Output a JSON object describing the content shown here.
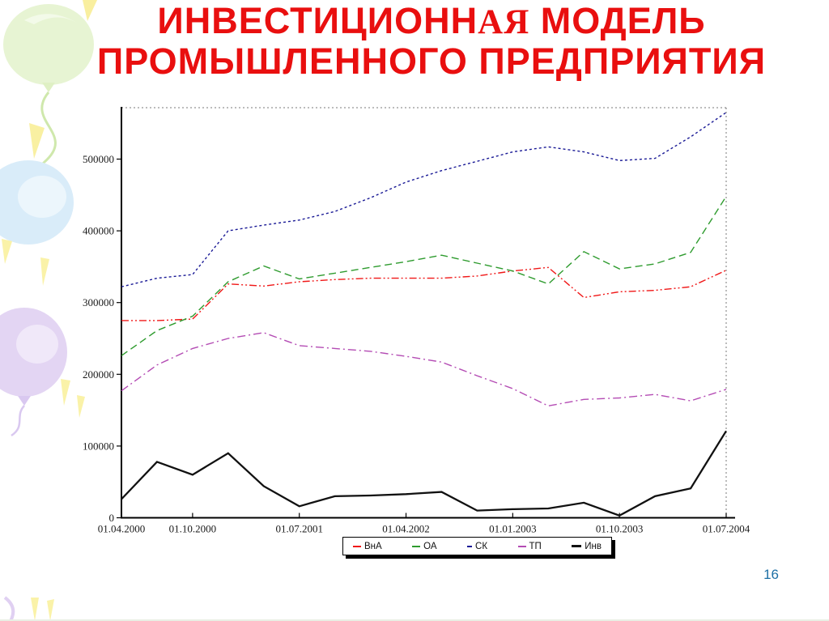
{
  "slide": {
    "title": {
      "line1_pre": "ИНВЕСТИЦИОНН",
      "line1_serif": "АЯ",
      "line1_post": " МОДЕЛЬ",
      "line2": "ПРОМЫШЛЕННОГО ПРЕДПРИЯТИЯ",
      "color": "#e90f0f"
    },
    "page_number": "16",
    "page_number_color": "#1d6fa5"
  },
  "chart_data": {
    "type": "line",
    "title": "",
    "xlabel": "",
    "ylabel": "",
    "grid": false,
    "legend_position": "bottom",
    "ylim": [
      0,
      570000
    ],
    "y_ticks": [
      0,
      100000,
      200000,
      300000,
      400000,
      500000
    ],
    "x_tick_labels": [
      "01.04.2000",
      "01.10.2000",
      "01.07.2001",
      "01.04.2002",
      "01.01.2003",
      "01.10.2003",
      "01.07.2004"
    ],
    "x_tick_months": [
      0,
      6,
      15,
      24,
      33,
      42,
      51
    ],
    "months_total": 51,
    "categories": [
      "01.04.2000",
      "01.07.2000",
      "01.10.2000",
      "01.01.2001",
      "01.04.2001",
      "01.07.2001",
      "01.10.2001",
      "01.01.2002",
      "01.04.2002",
      "01.07.2002",
      "01.10.2002",
      "01.01.2003",
      "01.04.2003",
      "01.07.2003",
      "01.10.2003",
      "01.01.2004",
      "01.04.2004",
      "01.07.2004"
    ],
    "series": [
      {
        "name": "ВнА",
        "key": "vna",
        "color": "#f01818",
        "dash": "9 3 2 3 2 3",
        "width": 1.4,
        "values": [
          275000,
          275000,
          277000,
          326000,
          323000,
          329000,
          332000,
          334000,
          334000,
          334000,
          337000,
          344000,
          349000,
          307000,
          315000,
          317000,
          322000,
          345000
        ]
      },
      {
        "name": "ОА",
        "key": "oa",
        "color": "#2e9b2e",
        "dash": "9 5",
        "width": 1.4,
        "values": [
          226000,
          261000,
          281000,
          329000,
          351000,
          333000,
          341000,
          349000,
          357000,
          366000,
          355000,
          344000,
          326000,
          371000,
          347000,
          354000,
          370000,
          448000
        ]
      },
      {
        "name": "СК",
        "key": "sk",
        "color": "#1a1a96",
        "dash": "3 3",
        "width": 1.4,
        "values": [
          322000,
          334000,
          339000,
          400000,
          408000,
          415000,
          427000,
          446000,
          468000,
          484000,
          497000,
          510000,
          517000,
          510000,
          498000,
          501000,
          531000,
          565000
        ]
      },
      {
        "name": "ТП",
        "key": "tp",
        "color": "#b44cb4",
        "dash": "10 4 2 4",
        "width": 1.4,
        "values": [
          177000,
          213000,
          236000,
          250000,
          258000,
          240000,
          236000,
          232000,
          225000,
          217000,
          198000,
          180000,
          156000,
          165000,
          167000,
          172000,
          163000,
          179000
        ]
      },
      {
        "name": "Инв",
        "key": "inv",
        "color": "#111111",
        "dash": "",
        "width": 2.3,
        "values": [
          26000,
          78000,
          60000,
          90000,
          44000,
          16000,
          30000,
          31000,
          33000,
          36000,
          10000,
          12000,
          13000,
          21000,
          3000,
          30000,
          41000,
          121000
        ]
      }
    ]
  }
}
